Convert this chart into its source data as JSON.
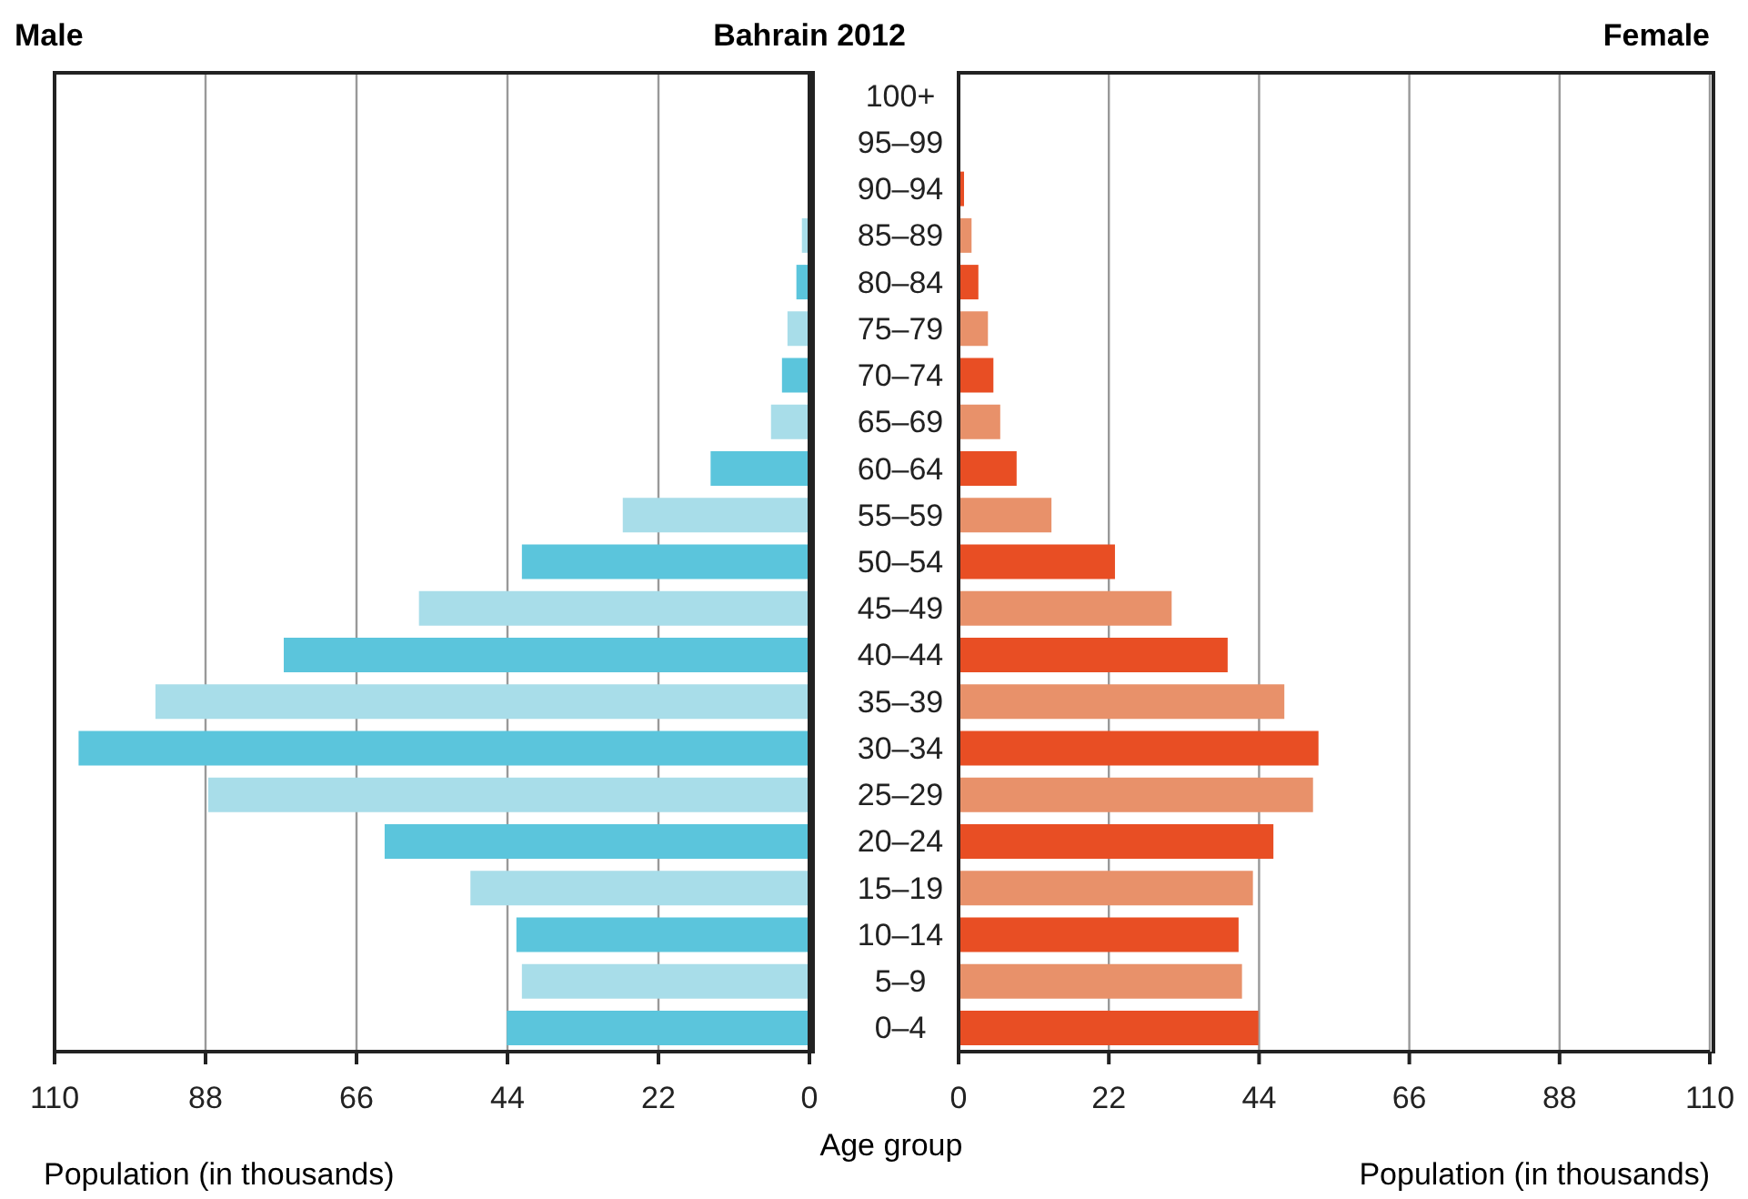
{
  "chart_data": [
    {
      "type": "bar",
      "orientation": "horizontal",
      "title": "Male",
      "annotations": [
        "Bahrain 2012"
      ],
      "ylabel": "Age group",
      "xlabel": "Population (in thousands)",
      "categories": [
        "100+",
        "95–99",
        "90–94",
        "85–89",
        "80–84",
        "75–79",
        "70–74",
        "65–69",
        "60–64",
        "55–59",
        "50–54",
        "45–49",
        "40–44",
        "35–39",
        "30–34",
        "25–29",
        "20–24",
        "15–19",
        "10–14",
        "5–9",
        "0–4"
      ],
      "values": [
        null,
        null,
        null,
        1.1,
        1.9,
        3.2,
        4.0,
        5.6,
        14.4,
        27.2,
        41.9,
        56.9,
        76.6,
        95.3,
        106.5,
        87.6,
        61.9,
        49.4,
        42.7,
        41.9,
        44.1
      ],
      "colors": [
        "#5bc5dc",
        "#a8dde9",
        "#5bc5dc",
        "#a8dde9",
        "#5bc5dc",
        "#a8dde9",
        "#5bc5dc",
        "#a8dde9",
        "#5bc5dc",
        "#a8dde9",
        "#5bc5dc",
        "#a8dde9",
        "#5bc5dc",
        "#a8dde9",
        "#5bc5dc",
        "#a8dde9",
        "#5bc5dc",
        "#a8dde9",
        "#5bc5dc",
        "#a8dde9",
        "#5bc5dc"
      ],
      "xlim": [
        110,
        0
      ],
      "xticks": [
        110,
        88,
        66,
        44,
        22,
        0
      ],
      "grid": "x",
      "legend": false
    },
    {
      "type": "bar",
      "orientation": "horizontal",
      "title": "Female",
      "xlabel": "Population (in thousands)",
      "categories": [
        null,
        null,
        null,
        null,
        null,
        null,
        null,
        null,
        null,
        null,
        null,
        null,
        null,
        null,
        null,
        null,
        null,
        null,
        null,
        null,
        null
      ],
      "values": [
        null,
        null,
        0.8,
        1.9,
        2.9,
        4.3,
        5.1,
        6.1,
        8.5,
        13.6,
        22.9,
        31.2,
        39.4,
        47.7,
        52.7,
        51.9,
        46.1,
        43.1,
        41.0,
        41.5,
        43.9
      ],
      "colors": [
        "#e84e24",
        "#e8916a",
        "#e84e24",
        "#e8916a",
        "#e84e24",
        "#e8916a",
        "#e84e24",
        "#e8916a",
        "#e84e24",
        "#e8916a",
        "#e84e24",
        "#e8916a",
        "#e84e24",
        "#e8916a",
        "#e84e24",
        "#e8916a",
        "#e84e24",
        "#e8916a",
        "#e84e24",
        "#e8916a",
        "#e84e24"
      ],
      "xlim": [
        0,
        110
      ],
      "xticks": [
        0,
        22,
        44,
        66,
        88,
        110
      ],
      "grid": "x",
      "legend": false
    }
  ]
}
